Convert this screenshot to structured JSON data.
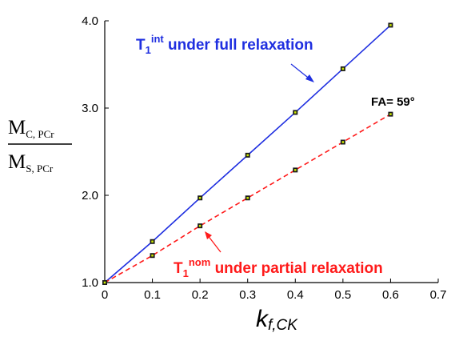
{
  "chart_data": {
    "type": "line",
    "xlim": [
      0,
      0.7
    ],
    "ylim": [
      1.0,
      4.0
    ],
    "x_ticks": [
      "0",
      "0.1",
      "0.2",
      "0.3",
      "0.4",
      "0.5",
      "0.6",
      "0.7"
    ],
    "y_ticks": [
      "1.0",
      "2.0",
      "3.0",
      "4.0"
    ],
    "grid": false,
    "xlabel": {
      "main": "k",
      "sub": "f,CK"
    },
    "ylabel": {
      "numerator_main": "M",
      "numerator_sub": "C, PCr",
      "denominator_main": "M",
      "denominator_sub": "S, PCr"
    },
    "series": [
      {
        "color": "#1f2fe0",
        "style": "solid",
        "x": [
          0,
          0.1,
          0.2,
          0.3,
          0.4,
          0.5,
          0.6
        ],
        "y": [
          1.0,
          1.47,
          1.97,
          2.46,
          2.95,
          3.45,
          3.95
        ]
      },
      {
        "color": "#ff1a1a",
        "style": "dashed",
        "x": [
          0,
          0.1,
          0.2,
          0.3,
          0.4,
          0.5,
          0.6
        ],
        "y": [
          1.0,
          1.31,
          1.65,
          1.97,
          2.29,
          2.61,
          2.93
        ]
      }
    ],
    "annotations": {
      "blue": {
        "main": "T",
        "sub": "1",
        "sup": "int",
        "rest": " under full relaxation"
      },
      "red": {
        "main": "T",
        "sub": "1",
        "sup": "nom",
        "rest": " under partial relaxation"
      },
      "fa": "FA= 59°"
    },
    "marker_fill": "#1a1a1a",
    "marker_center": "#c8e600"
  }
}
